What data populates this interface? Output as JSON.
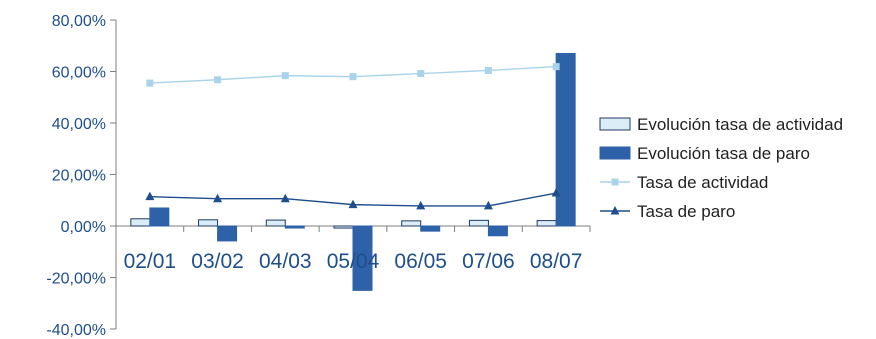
{
  "chart_data": {
    "type": "bar",
    "categories": [
      "02/01",
      "03/02",
      "04/03",
      "05/04",
      "06/05",
      "07/06",
      "08/07"
    ],
    "ylim": [
      -40,
      80
    ],
    "yticks": [
      80,
      60,
      40,
      20,
      0,
      -20,
      -40
    ],
    "ytick_labels": [
      "80,00%",
      "60,00%",
      "40,00%",
      "20,00%",
      "0,00%",
      "-20,00%",
      "-40,00%"
    ],
    "legend_position": "right",
    "grid": false,
    "series": [
      {
        "name": "Evolución tasa de actividad",
        "kind": "bar",
        "color": "#dbeef7",
        "stroke": "#1f3864",
        "values": [
          2.8,
          2.4,
          2.3,
          -0.8,
          2.0,
          2.2,
          2.1
        ]
      },
      {
        "name": "Evolución tasa de paro",
        "kind": "bar",
        "color": "#2e62a8",
        "stroke": "#2e62a8",
        "values": [
          7.0,
          -5.8,
          -0.8,
          -25.0,
          -2.0,
          -3.8,
          67.0
        ]
      },
      {
        "name": "Tasa de actividad",
        "kind": "line",
        "marker": "square",
        "color": "#a9d3ea",
        "values": [
          55.5,
          56.8,
          58.4,
          58.0,
          59.2,
          60.4,
          61.9
        ]
      },
      {
        "name": "Tasa de paro",
        "kind": "line",
        "marker": "triangle",
        "color": "#1f4e8c",
        "values": [
          11.4,
          10.6,
          10.6,
          8.3,
          7.8,
          7.8,
          12.8
        ]
      }
    ]
  }
}
